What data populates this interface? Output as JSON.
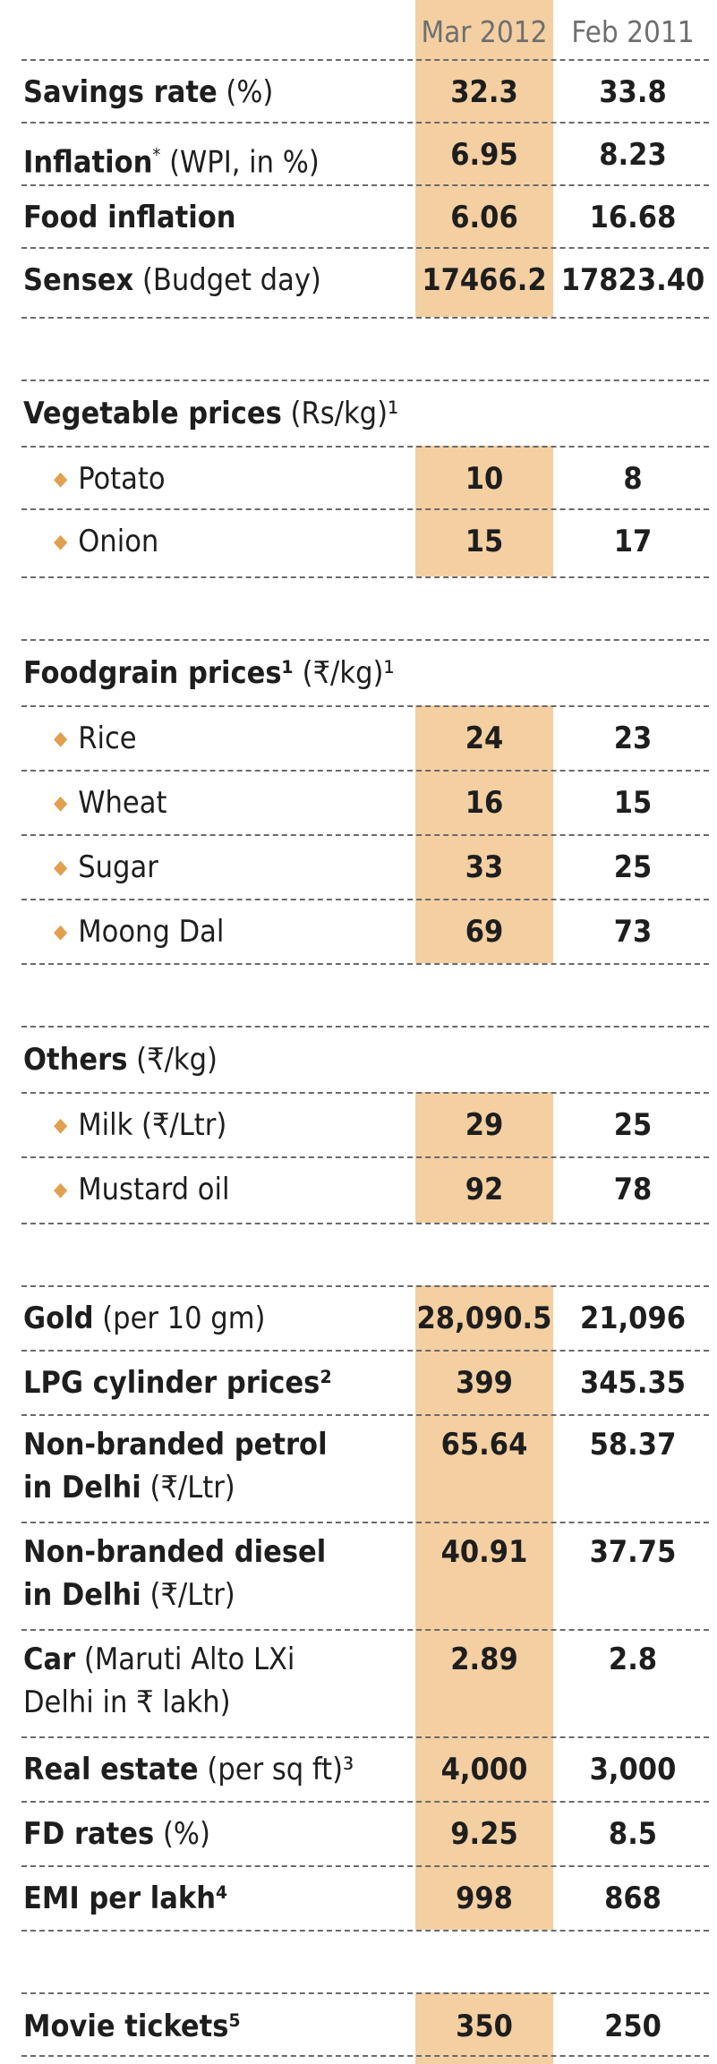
{
  "header": {
    "col1": "Mar 2012",
    "col2": "Feb 2011"
  },
  "sections": [
    {
      "rows": [
        {
          "label_bold": "Savings rate",
          "label_rest": " (%)",
          "v1": "32.3",
          "v2": "33.8"
        },
        {
          "label_bold": "Inflation",
          "sup": "*",
          "label_rest": " (WPI, in %)",
          "v1": "6.95",
          "v2": "8.23"
        },
        {
          "label_bold": "Food inflation",
          "label_rest": "",
          "v1": "6.06",
          "v2": "16.68"
        },
        {
          "label_bold": "Sensex",
          "label_rest": " (Budget day)",
          "v1": "17466.2",
          "v2": "17823.40"
        }
      ]
    },
    {
      "heading_bold": "Vegetable prices",
      "heading_rest": " (Rs/kg)¹",
      "rows": [
        {
          "label": "Potato",
          "v1": "10",
          "v2": "8"
        },
        {
          "label": "Onion",
          "v1": "15",
          "v2": "17"
        }
      ]
    },
    {
      "heading_bold": "Foodgrain prices¹",
      "heading_rest": " (₹/kg)¹",
      "rows": [
        {
          "label": "Rice",
          "v1": "24",
          "v2": "23"
        },
        {
          "label": "Wheat",
          "v1": "16",
          "v2": "15"
        },
        {
          "label": "Sugar",
          "v1": "33",
          "v2": "25"
        },
        {
          "label": "Moong Dal",
          "v1": "69",
          "v2": "73"
        }
      ]
    },
    {
      "heading_bold": "Others",
      "heading_rest": " (₹/kg)",
      "rows": [
        {
          "label": "Milk (₹/Ltr)",
          "v1": "29",
          "v2": "25"
        },
        {
          "label": "Mustard oil",
          "v1": "92",
          "v2": "78"
        }
      ]
    },
    {
      "rows": [
        {
          "label_bold": "Gold",
          "label_rest": " (per 10 gm)",
          "v1": "28,090.5",
          "v2": "21,096"
        },
        {
          "label_bold": "LPG cylinder prices²",
          "label_rest": "",
          "v1": "399",
          "v2": "345.35"
        },
        {
          "line1_bold": "Non-branded petrol",
          "line2_bold": "in Delhi",
          "line2_rest": " (₹/Ltr)",
          "v1": "65.64",
          "v2": "58.37"
        },
        {
          "line1_bold": "Non-branded diesel",
          "line2_bold": "in Delhi",
          "line2_rest": " (₹/Ltr)",
          "v1": "40.91",
          "v2": "37.75"
        },
        {
          "line1_bold": "Car",
          "line1_rest": " (Maruti Alto LXi",
          "line2_bold": "",
          "line2_rest": "Delhi in ₹ lakh)",
          "v1": "2.89",
          "v2": "2.8"
        },
        {
          "label_bold": "Real estate",
          "label_rest": " (per sq ft)³",
          "v1": "4,000",
          "v2": "3,000"
        },
        {
          "label_bold": "FD rates",
          "label_rest": " (%)",
          "v1": "9.25",
          "v2": "8.5"
        },
        {
          "label_bold": "EMI per lakh⁴",
          "label_rest": "",
          "v1": "998",
          "v2": "868"
        }
      ]
    },
    {
      "rows": [
        {
          "label_bold": "Movie tickets⁵",
          "label_rest": "",
          "v1": "350",
          "v2": "250"
        }
      ]
    }
  ]
}
